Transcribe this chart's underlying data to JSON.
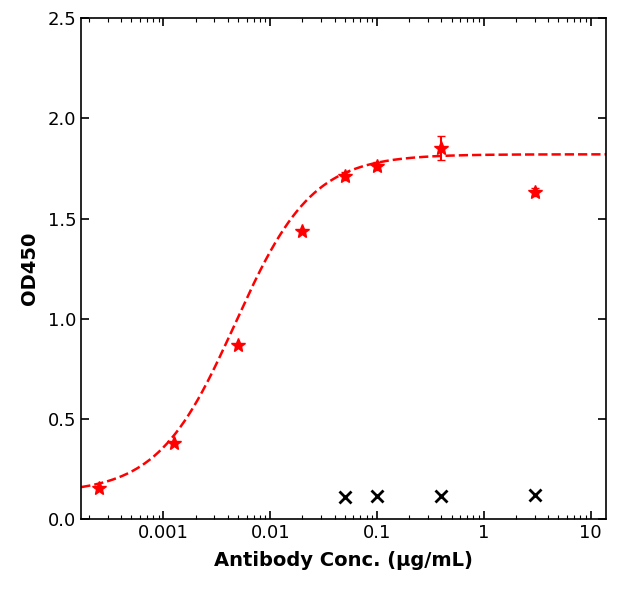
{
  "red_x": [
    0.00025,
    0.00125,
    0.005,
    0.02,
    0.05,
    0.1,
    0.4,
    3.0
  ],
  "red_y": [
    0.155,
    0.38,
    0.87,
    1.44,
    1.71,
    1.76,
    1.85,
    1.63
  ],
  "red_yerr": [
    0.0,
    0.0,
    0.0,
    0.0,
    0.02,
    0.02,
    0.06,
    0.02
  ],
  "black_x": [
    0.05,
    0.1,
    0.4,
    3.0
  ],
  "black_y": [
    0.11,
    0.115,
    0.115,
    0.12
  ],
  "ec50": 0.00468,
  "xlabel": "Antibody Conc. (μg/mL)",
  "ylabel": "OD450",
  "xmin": 0.00017,
  "xmax": 14.0,
  "ylim": [
    0.0,
    2.5
  ],
  "yticks": [
    0.0,
    0.5,
    1.0,
    1.5,
    2.0,
    2.5
  ],
  "xticks": [
    0.001,
    0.01,
    0.1,
    1,
    10
  ],
  "xticklabels": [
    "0.001",
    "0.01",
    "0.1",
    "1",
    "10"
  ],
  "line_color": "#FF0000",
  "marker_color_red": "#FF0000",
  "marker_color_black": "#000000",
  "bg_color": "#FFFFFF",
  "label_fontsize": 14,
  "tick_fontsize": 13
}
